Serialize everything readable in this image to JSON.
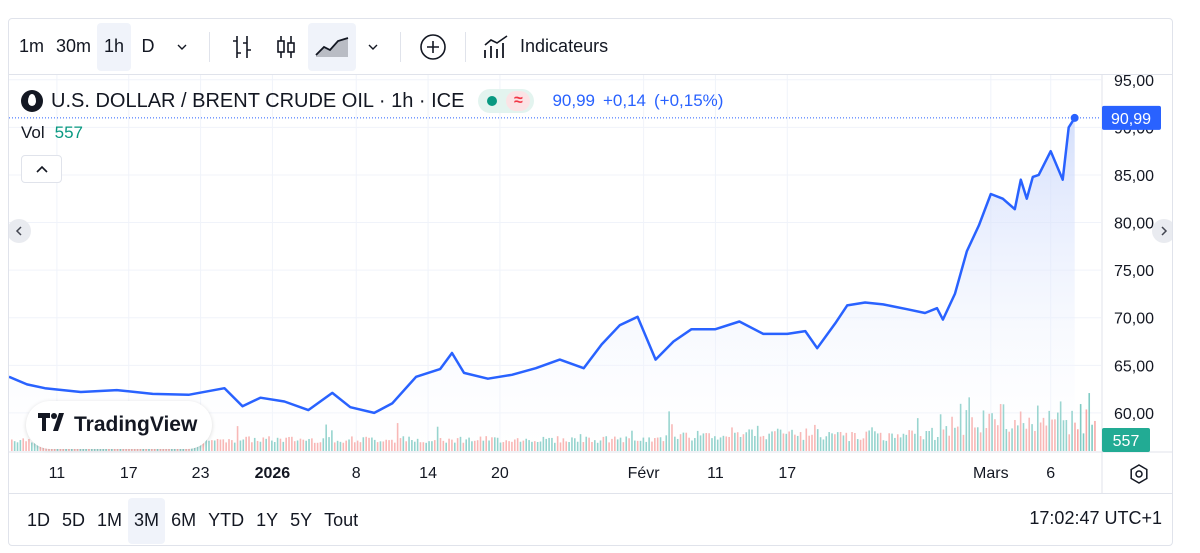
{
  "toolbar": {
    "intervals": [
      "1m",
      "30m",
      "1h",
      "D"
    ],
    "active_interval": "1h",
    "indicators_label": "Indicateurs"
  },
  "legend": {
    "symbol": "U.S. DOLLAR / BRENT CRUDE OIL · 1h · ICE",
    "price": "90,99",
    "change": "+0,14",
    "change_pct": "(+0,15%)",
    "status_wave": "≈"
  },
  "volume": {
    "label": "Vol",
    "value": "557"
  },
  "price_label": "90,99",
  "volume_label": "557",
  "logo": "TradingView",
  "bottombar": {
    "ranges": [
      "1D",
      "5D",
      "1M",
      "3M",
      "6M",
      "YTD",
      "1Y",
      "5Y",
      "Tout"
    ],
    "active_range": "3M",
    "clock": "17:02:47 UTC+1"
  },
  "colors": {
    "line": "#2962ff",
    "area_top": "#c7d5fb",
    "area_bottom": "#ffffff",
    "vol_up": "#80cbc4",
    "vol_down": "#f7a9a7",
    "badge_price": "#2962ff",
    "badge_volume": "#22ab94"
  },
  "chart_data": {
    "type": "area",
    "title": "U.S. DOLLAR / BRENT CRUDE OIL · 1h · ICE",
    "ylim": [
      56.0,
      95.5
    ],
    "xlim": [
      0,
      91.2
    ],
    "y_ticks": [
      "60,00",
      "65,00",
      "70,00",
      "75,00",
      "80,00",
      "85,00",
      "90,00",
      "95,00"
    ],
    "y_tick_values": [
      60,
      65,
      70,
      75,
      80,
      85,
      90,
      95
    ],
    "x_tick_labels": [
      "11",
      "17",
      "23",
      "2026",
      "8",
      "14",
      "20",
      "Févr",
      "11",
      "17",
      "Mars",
      "6"
    ],
    "x_tick_positions": [
      4,
      10,
      16,
      22,
      29,
      35,
      41,
      53,
      59,
      65,
      82,
      87
    ],
    "x": [
      0,
      1.5,
      3,
      6,
      9,
      12,
      15,
      18,
      19.5,
      21,
      23,
      25,
      27,
      28.5,
      30.5,
      32,
      34,
      36,
      37,
      38,
      40,
      42,
      44,
      46,
      48,
      49.5,
      51,
      52.5,
      54,
      55.5,
      57,
      59,
      61,
      63,
      65,
      66.5,
      67.5,
      69,
      70,
      71.5,
      73,
      75,
      76.5,
      77.5,
      78,
      79,
      80,
      81,
      82,
      83,
      84,
      84.5,
      85,
      85.5,
      86,
      87,
      88,
      88.5,
      89
    ],
    "values": [
      63.8,
      63.0,
      62.6,
      62.2,
      62.4,
      62.0,
      61.9,
      62.6,
      60.7,
      61.6,
      61.2,
      60.3,
      62.1,
      60.6,
      60.0,
      61.0,
      63.8,
      64.6,
      66.3,
      64.2,
      63.6,
      64.0,
      64.7,
      65.6,
      64.7,
      67.2,
      69.2,
      70.1,
      65.6,
      67.5,
      68.8,
      68.8,
      69.6,
      68.3,
      68.3,
      68.6,
      66.8,
      69.4,
      71.3,
      71.6,
      71.4,
      70.9,
      70.5,
      71.0,
      69.8,
      72.5,
      77.0,
      79.7,
      83.0,
      82.5,
      81.4,
      84.5,
      82.5,
      84.8,
      85.0,
      87.5,
      84.5,
      90.0,
      90.99
    ],
    "volume_max": 65.4
  }
}
